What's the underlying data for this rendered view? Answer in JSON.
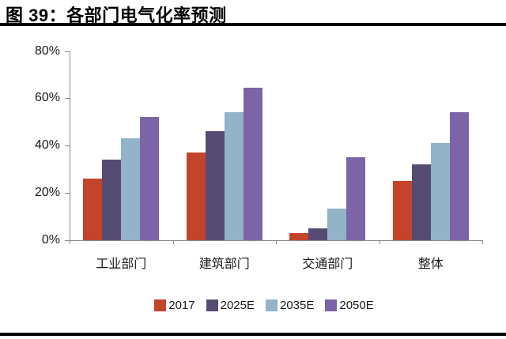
{
  "title": {
    "text": "图 39：各部门电气化率预测"
  },
  "chart_data": {
    "type": "bar",
    "title": "各部门电气化率预测",
    "categories": [
      "工业部门",
      "建筑部门",
      "交通部门",
      "整体"
    ],
    "series": [
      {
        "name": "2017",
        "color": "#C3432B",
        "values": [
          26,
          37,
          3,
          25
        ]
      },
      {
        "name": "2025E",
        "color": "#564B72",
        "values": [
          34,
          46,
          5,
          32
        ]
      },
      {
        "name": "2035E",
        "color": "#92B3C8",
        "values": [
          43,
          54,
          13.5,
          41
        ]
      },
      {
        "name": "2050E",
        "color": "#7C64A6",
        "values": [
          52,
          64.5,
          35,
          54
        ]
      }
    ],
    "xlabel": "",
    "ylabel": "",
    "ylim": [
      0,
      80
    ],
    "ytick_values": [
      0,
      20,
      40,
      60,
      80
    ],
    "ytick_suffix": "%",
    "grid": false,
    "legend_position": "bottom"
  },
  "colors": {
    "axis": "#8a8a8a",
    "text": "#1a1a1a",
    "rule": "#000000",
    "background": "#ffffff"
  }
}
